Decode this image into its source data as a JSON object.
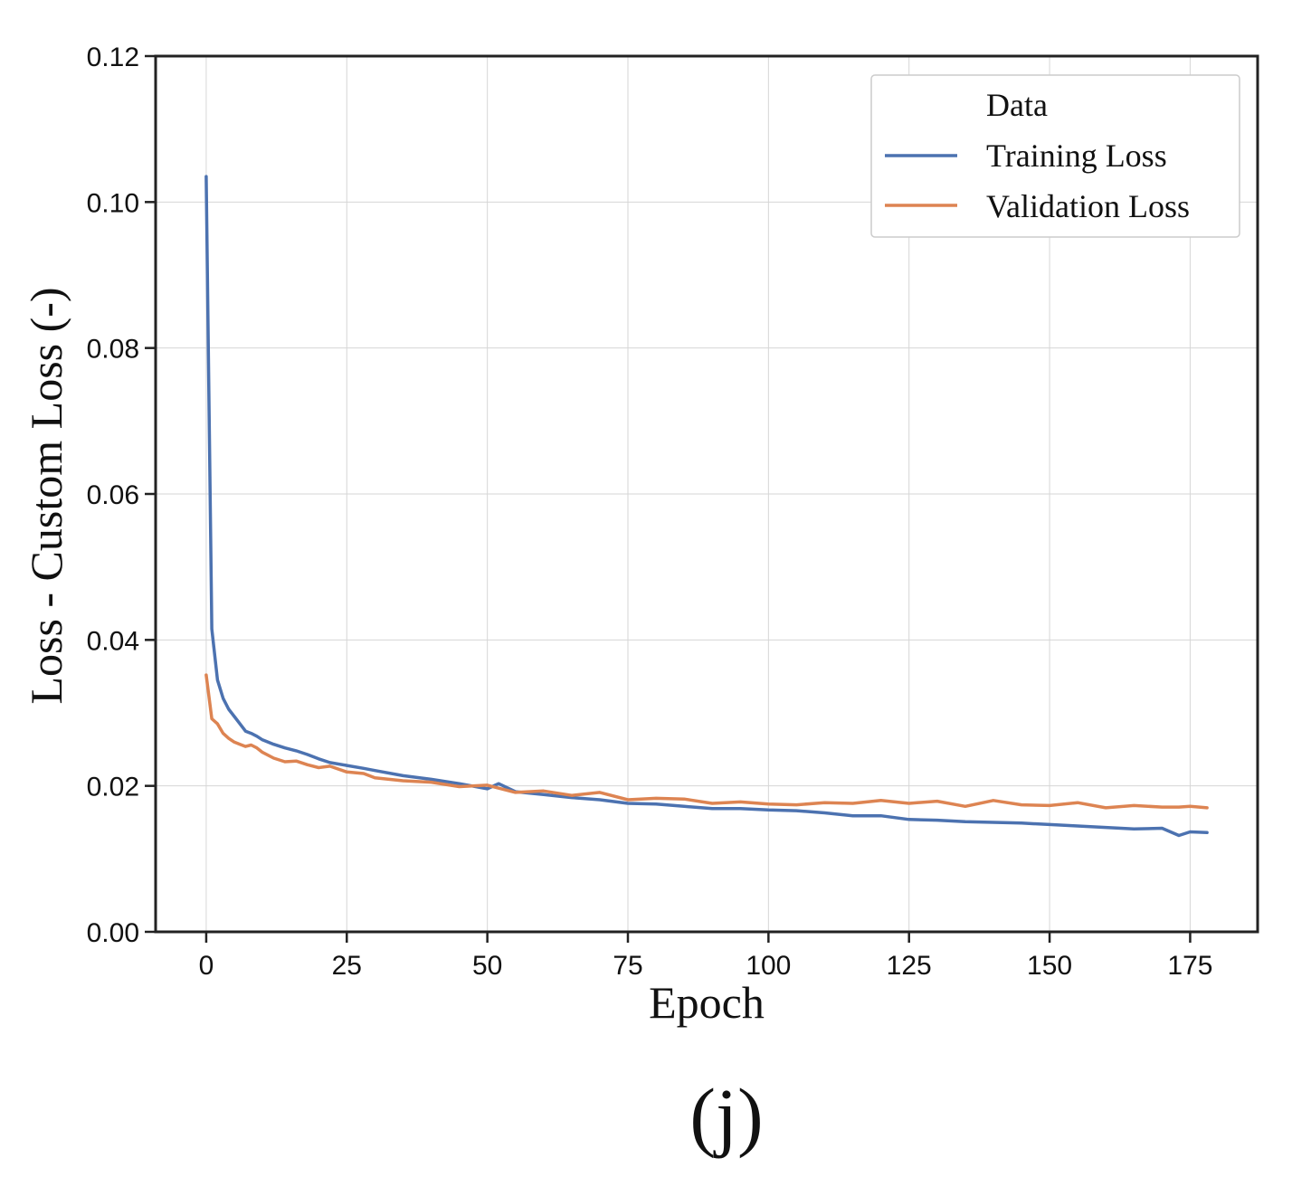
{
  "chart_data": {
    "type": "line",
    "title": "",
    "xlabel": "Epoch",
    "ylabel": "Loss - Custom Loss (-)",
    "xlim": [
      -9,
      187
    ],
    "ylim": [
      0.0,
      0.12
    ],
    "xticks": [
      0,
      25,
      50,
      75,
      100,
      125,
      150,
      175
    ],
    "xtick_labels": [
      "0",
      "25",
      "50",
      "75",
      "100",
      "125",
      "150",
      "175"
    ],
    "yticks": [
      0.0,
      0.02,
      0.04,
      0.06,
      0.08,
      0.1,
      0.12
    ],
    "ytick_labels": [
      "0.00",
      "0.02",
      "0.04",
      "0.06",
      "0.08",
      "0.10",
      "0.12"
    ],
    "grid": true,
    "legend": {
      "title": "Data",
      "position": "top-right"
    },
    "panel_label": "(j)",
    "series": [
      {
        "name": "Training Loss",
        "color": "#4c72b0",
        "x": [
          0,
          1,
          2,
          3,
          4,
          5,
          6,
          7,
          8,
          9,
          10,
          12,
          14,
          16,
          18,
          20,
          22,
          25,
          28,
          30,
          35,
          40,
          45,
          50,
          52,
          55,
          60,
          65,
          70,
          75,
          80,
          85,
          90,
          95,
          100,
          105,
          110,
          115,
          120,
          125,
          130,
          135,
          140,
          145,
          150,
          155,
          160,
          165,
          170,
          173,
          175,
          178
        ],
        "values": [
          0.1035,
          0.0415,
          0.0345,
          0.032,
          0.0305,
          0.0295,
          0.0285,
          0.0275,
          0.0272,
          0.0268,
          0.0263,
          0.0257,
          0.0252,
          0.0248,
          0.0243,
          0.0237,
          0.0232,
          0.0228,
          0.0224,
          0.0221,
          0.0214,
          0.0209,
          0.0203,
          0.0196,
          0.0203,
          0.0192,
          0.0188,
          0.0184,
          0.0181,
          0.0176,
          0.0175,
          0.0172,
          0.0169,
          0.0169,
          0.0167,
          0.0166,
          0.0163,
          0.0159,
          0.0159,
          0.0154,
          0.0153,
          0.0151,
          0.015,
          0.0149,
          0.0147,
          0.0145,
          0.0143,
          0.0141,
          0.0142,
          0.0132,
          0.0137,
          0.0136
        ]
      },
      {
        "name": "Validation Loss",
        "color": "#dd8452",
        "x": [
          0,
          1,
          2,
          3,
          4,
          5,
          6,
          7,
          8,
          9,
          10,
          12,
          14,
          16,
          18,
          20,
          22,
          25,
          28,
          30,
          35,
          40,
          45,
          50,
          55,
          60,
          65,
          70,
          75,
          80,
          85,
          90,
          95,
          100,
          105,
          110,
          115,
          120,
          125,
          130,
          135,
          140,
          145,
          150,
          155,
          160,
          165,
          170,
          173,
          175,
          178
        ],
        "values": [
          0.0352,
          0.0292,
          0.0285,
          0.0272,
          0.0265,
          0.026,
          0.0257,
          0.0254,
          0.0256,
          0.0252,
          0.0246,
          0.0238,
          0.0233,
          0.0234,
          0.0229,
          0.0225,
          0.0227,
          0.0219,
          0.0217,
          0.0211,
          0.0207,
          0.0205,
          0.0199,
          0.0201,
          0.0191,
          0.0193,
          0.0187,
          0.0191,
          0.0181,
          0.0183,
          0.0182,
          0.0176,
          0.0178,
          0.0175,
          0.0174,
          0.0177,
          0.0176,
          0.018,
          0.0176,
          0.0179,
          0.0172,
          0.018,
          0.0174,
          0.0173,
          0.0177,
          0.017,
          0.0173,
          0.0171,
          0.0171,
          0.0172,
          0.017
        ]
      }
    ]
  }
}
